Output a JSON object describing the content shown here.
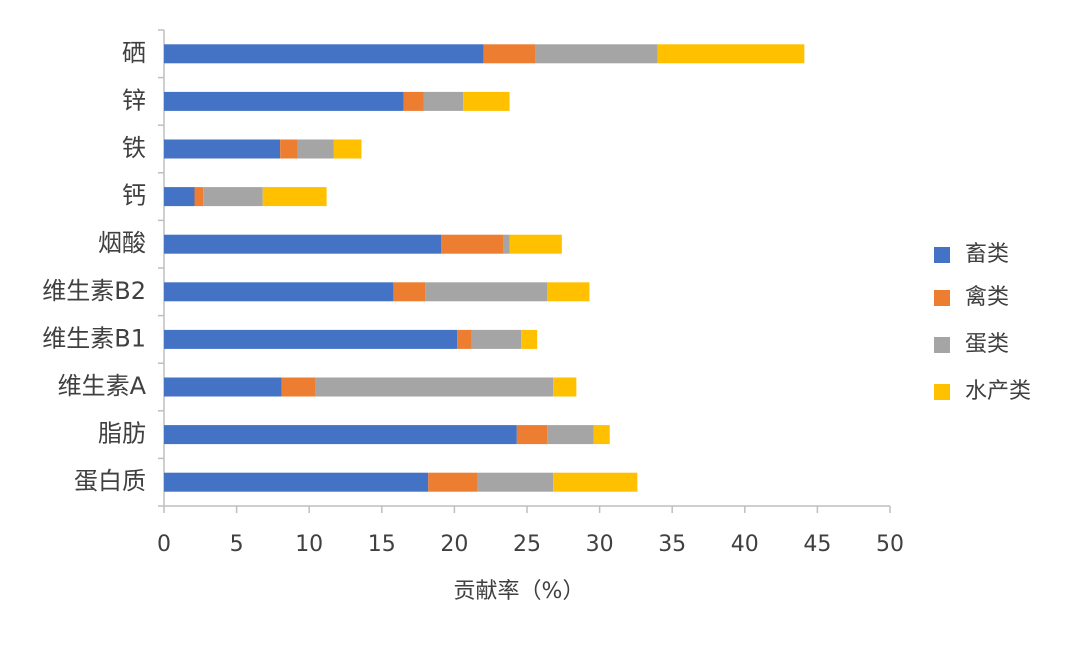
{
  "chart_data": {
    "type": "stacked-barh",
    "categories": [
      "硒",
      "锌",
      "铁",
      "钙",
      "烟酸",
      "维生素B2",
      "维生素B1",
      "维生素A",
      "脂肪",
      "蛋白质"
    ],
    "series": [
      {
        "name": "畜类",
        "color": "#4472c4",
        "values": [
          22.0,
          16.5,
          8.0,
          2.1,
          19.1,
          15.8,
          20.2,
          8.1,
          24.3,
          18.2
        ]
      },
      {
        "name": "禽类",
        "color": "#ed7d31",
        "values": [
          3.6,
          1.4,
          1.2,
          0.6,
          4.3,
          2.2,
          1.0,
          2.3,
          2.1,
          3.4
        ]
      },
      {
        "name": "蛋类",
        "color": "#a5a5a5",
        "values": [
          8.4,
          2.7,
          2.5,
          4.1,
          0.4,
          8.4,
          3.4,
          16.4,
          3.2,
          5.2
        ]
      },
      {
        "name": "水产类",
        "color": "#ffc000",
        "values": [
          10.1,
          3.2,
          1.9,
          4.4,
          3.6,
          2.9,
          1.1,
          1.6,
          1.1,
          5.8
        ]
      }
    ],
    "xlabel": "贡献率（%）",
    "xlim": [
      0,
      50
    ],
    "xticks": [
      0,
      5,
      10,
      15,
      20,
      25,
      30,
      35,
      40,
      45,
      50
    ],
    "grid": false,
    "legend": "right"
  }
}
